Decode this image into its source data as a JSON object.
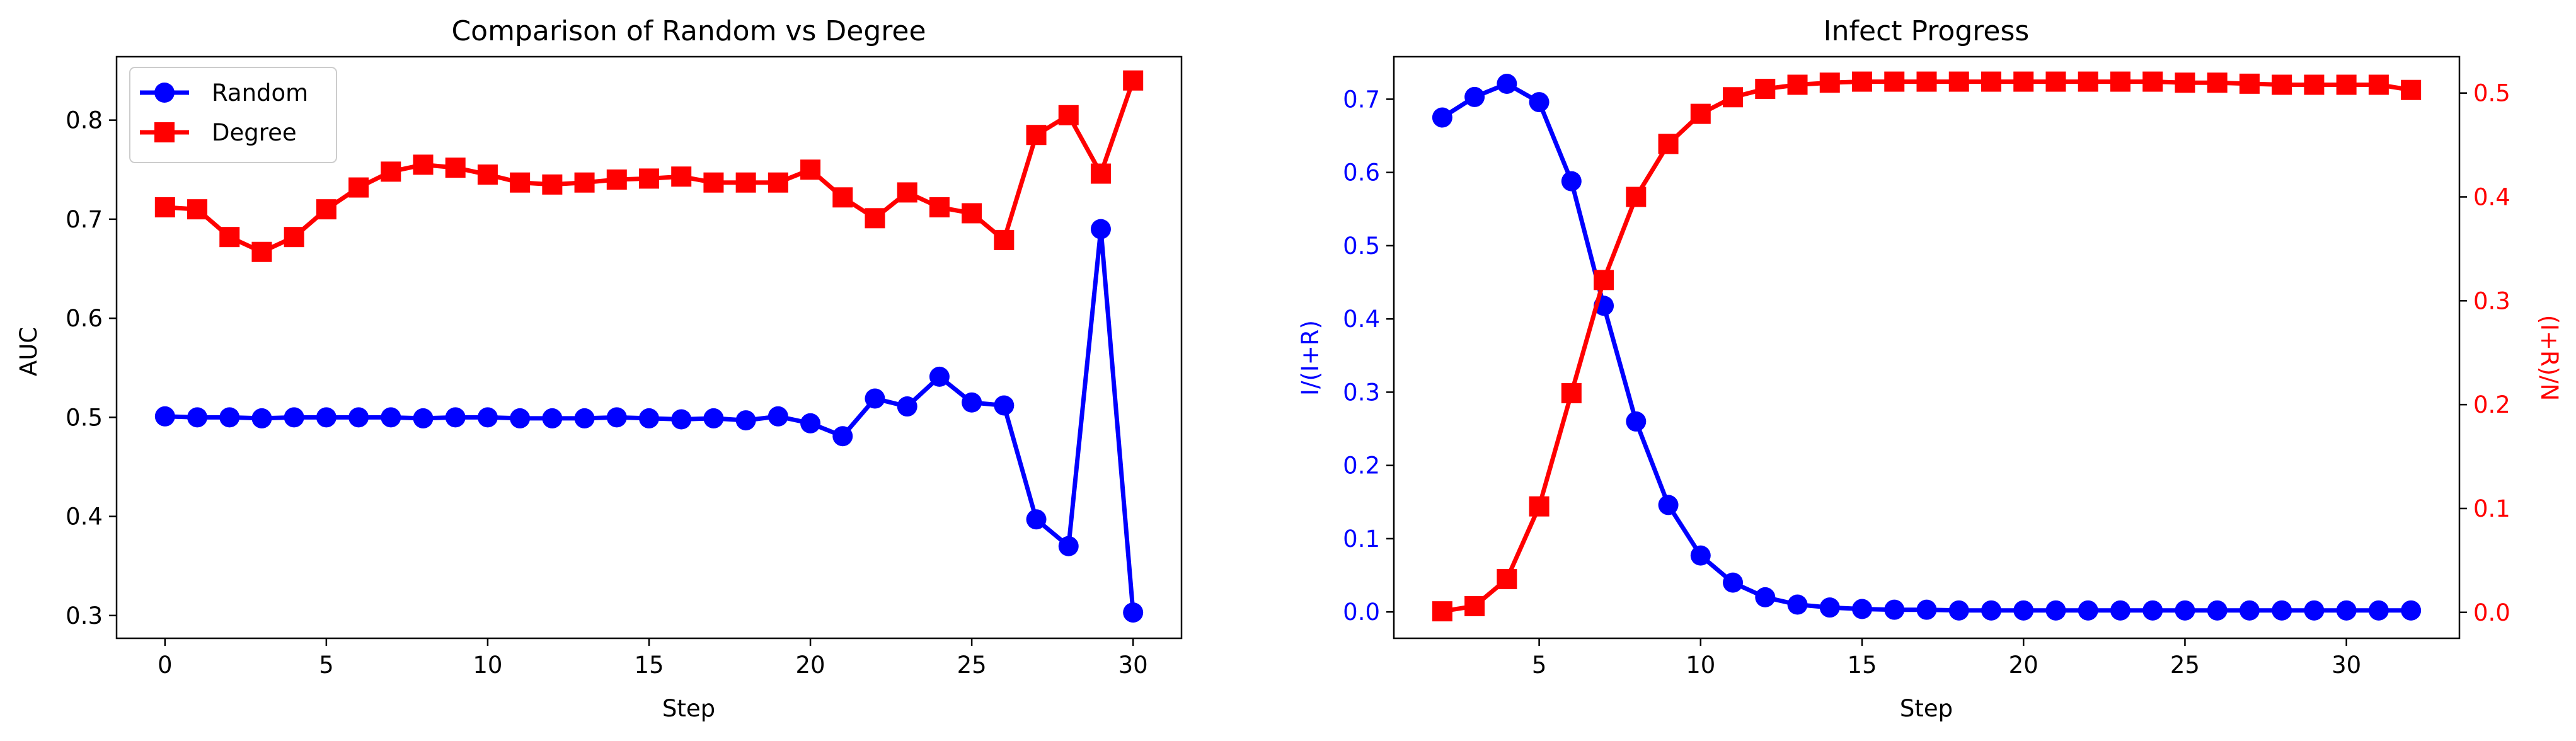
{
  "chart_data": [
    {
      "type": "line",
      "title": "Comparison of Random vs Degree",
      "xlabel": "Step",
      "ylabel": "AUC",
      "xlim": [
        -1.5,
        31.5
      ],
      "ylim": [
        0.277,
        0.864
      ],
      "xticks": [
        0,
        5,
        10,
        15,
        20,
        25,
        30
      ],
      "yticks": [
        0.3,
        0.4,
        0.5,
        0.6,
        0.7,
        0.8
      ],
      "legend_position": "upper-left",
      "grid": false,
      "x": [
        0,
        1,
        2,
        3,
        4,
        5,
        6,
        7,
        8,
        9,
        10,
        11,
        12,
        13,
        14,
        15,
        16,
        17,
        18,
        19,
        20,
        21,
        22,
        23,
        24,
        25,
        26,
        27,
        28,
        29,
        30
      ],
      "series": [
        {
          "name": "Random",
          "color": "#0000ff",
          "marker": "circle",
          "values": [
            0.501,
            0.5,
            0.5,
            0.499,
            0.5,
            0.5,
            0.5,
            0.5,
            0.499,
            0.5,
            0.5,
            0.499,
            0.499,
            0.499,
            0.5,
            0.499,
            0.498,
            0.499,
            0.497,
            0.501,
            0.494,
            0.481,
            0.519,
            0.511,
            0.541,
            0.515,
            0.512,
            0.397,
            0.37,
            0.69,
            0.303
          ]
        },
        {
          "name": "Degree",
          "color": "#ff0000",
          "marker": "square",
          "values": [
            0.712,
            0.71,
            0.682,
            0.667,
            0.682,
            0.71,
            0.732,
            0.748,
            0.755,
            0.752,
            0.745,
            0.737,
            0.735,
            0.737,
            0.74,
            0.741,
            0.743,
            0.737,
            0.737,
            0.737,
            0.75,
            0.722,
            0.701,
            0.727,
            0.712,
            0.706,
            0.679,
            0.785,
            0.805,
            0.746,
            0.84
          ]
        }
      ]
    },
    {
      "type": "line",
      "title": "Infect Progress",
      "xlabel": "Step",
      "ylabel_left": "I/(I+R)",
      "ylabel_right": "(I+R)/N",
      "xlim": [
        0.5,
        33.5
      ],
      "ylim_left": [
        -0.036,
        0.758
      ],
      "ylim_right": [
        -0.025,
        0.535
      ],
      "xticks": [
        5,
        10,
        15,
        20,
        25,
        30
      ],
      "yticks_left": [
        0.0,
        0.1,
        0.2,
        0.3,
        0.4,
        0.5,
        0.6,
        0.7
      ],
      "yticks_right": [
        0.0,
        0.1,
        0.2,
        0.3,
        0.4,
        0.5
      ],
      "grid": false,
      "x": [
        2,
        3,
        4,
        5,
        6,
        7,
        8,
        9,
        10,
        11,
        12,
        13,
        14,
        15,
        16,
        17,
        18,
        19,
        20,
        21,
        22,
        23,
        24,
        25,
        26,
        27,
        28,
        29,
        30,
        31,
        32
      ],
      "series": [
        {
          "name": "I/(I+R)",
          "axis": "left",
          "color": "#0000ff",
          "marker": "circle",
          "values": [
            0.675,
            0.703,
            0.721,
            0.696,
            0.588,
            0.418,
            0.26,
            0.146,
            0.077,
            0.04,
            0.02,
            0.01,
            0.006,
            0.004,
            0.003,
            0.003,
            0.002,
            0.002,
            0.002,
            0.002,
            0.002,
            0.002,
            0.002,
            0.002,
            0.002,
            0.002,
            0.002,
            0.002,
            0.002,
            0.002,
            0.002
          ]
        },
        {
          "name": "(I+R)/N",
          "axis": "right",
          "color": "#ff0000",
          "marker": "square",
          "values": [
            0.001,
            0.006,
            0.032,
            0.102,
            0.211,
            0.32,
            0.4,
            0.451,
            0.48,
            0.496,
            0.504,
            0.508,
            0.51,
            0.511,
            0.511,
            0.511,
            0.511,
            0.511,
            0.511,
            0.511,
            0.511,
            0.511,
            0.511,
            0.51,
            0.51,
            0.509,
            0.508,
            0.508,
            0.508,
            0.508,
            0.503
          ]
        }
      ]
    }
  ]
}
